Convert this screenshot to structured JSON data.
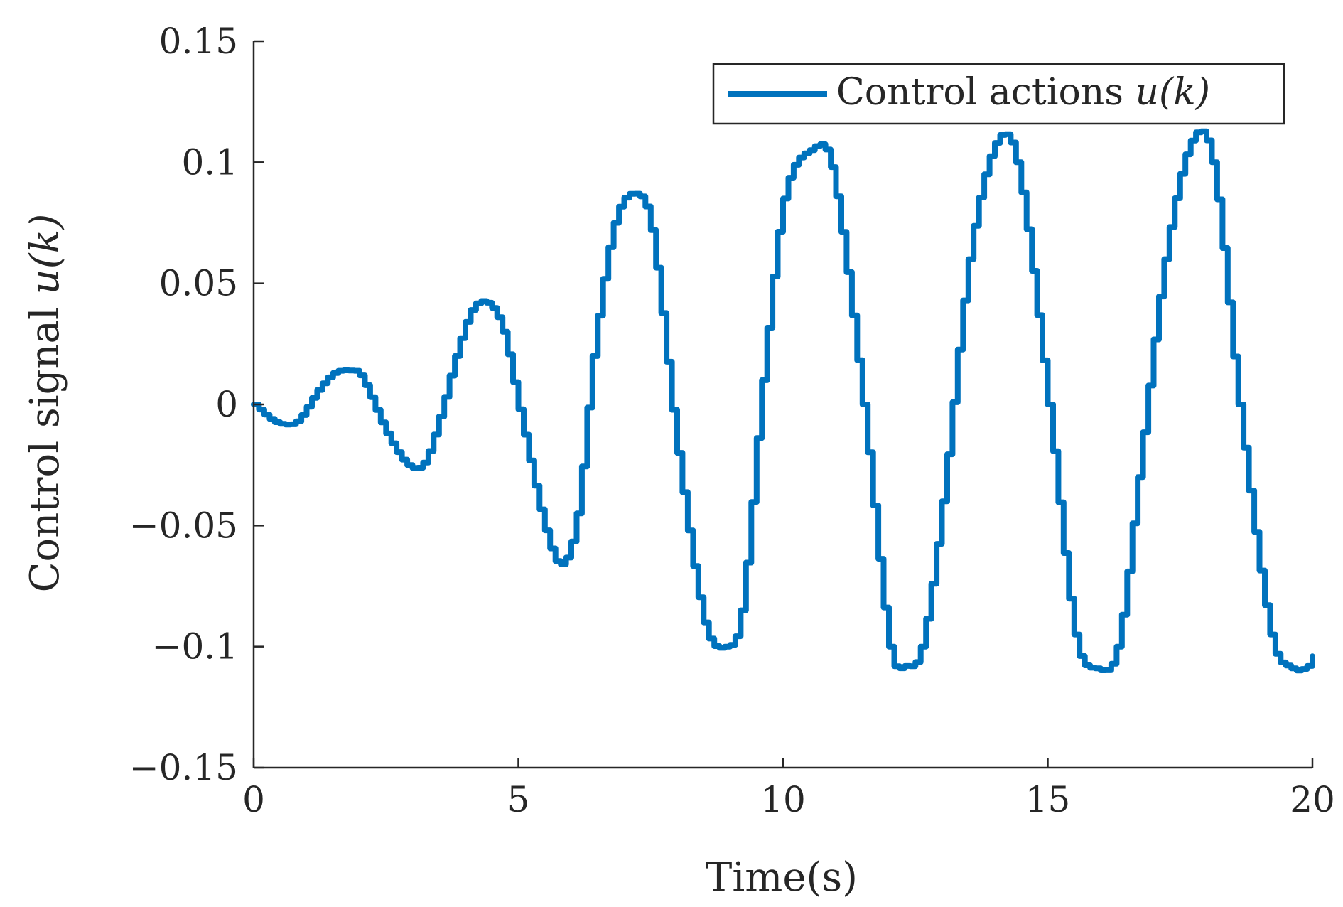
{
  "chart_data": {
    "type": "line",
    "xlabel": "Time(s)",
    "ylabel": {
      "text": "Control signal ",
      "math": "u(k)"
    },
    "xlim": [
      0,
      20
    ],
    "ylim": [
      -0.15,
      0.15
    ],
    "xticks": [
      0,
      5,
      10,
      15,
      20
    ],
    "xtick_labels": [
      "0",
      "5",
      "10",
      "15",
      "20"
    ],
    "yticks": [
      -0.15,
      -0.1,
      -0.05,
      0,
      0.05,
      0.1,
      0.15
    ],
    "ytick_labels": [
      "−0.15",
      "−0.1",
      "−0.05",
      "0",
      "0.05",
      "0.1",
      "0.15"
    ],
    "grid": false,
    "legend": {
      "position": "top-right",
      "entries": [
        {
          "text": "Control actions ",
          "math": "u(k)"
        }
      ]
    },
    "series": [
      {
        "name": "Control actions u(k)",
        "color": "#0072BD",
        "step": true,
        "x": [
          0,
          0.3,
          0.5,
          0.8,
          1.2,
          1.5,
          1.75,
          2.0,
          2.5,
          2.9,
          3.2,
          3.5,
          3.8,
          4.1,
          4.4,
          4.7,
          5.0,
          5.5,
          5.8,
          6.1,
          6.4,
          6.8,
          7.2,
          7.5,
          8.0,
          8.5,
          8.9,
          9.2,
          9.6,
          10.0,
          10.5,
          10.9,
          11.5,
          12.0,
          12.3,
          12.6,
          13.0,
          13.5,
          14.0,
          14.4,
          15.0,
          15.5,
          15.9,
          16.3,
          16.7,
          17.2,
          17.7,
          18.1,
          18.6,
          19.2,
          19.6,
          19.9,
          20.0
        ],
        "y": [
          0,
          -0.006,
          -0.008,
          -0.007,
          0.006,
          0.013,
          0.014,
          0.012,
          -0.012,
          -0.025,
          -0.024,
          -0.005,
          0.02,
          0.039,
          0.042,
          0.03,
          -0.002,
          -0.052,
          -0.066,
          -0.045,
          0.02,
          0.075,
          0.087,
          0.072,
          -0.02,
          -0.09,
          -0.1,
          -0.085,
          0.01,
          0.085,
          0.105,
          0.098,
          0.0,
          -0.1,
          -0.108,
          -0.1,
          -0.04,
          0.06,
          0.108,
          0.1,
          0.0,
          -0.095,
          -0.109,
          -0.1,
          -0.03,
          0.06,
          0.109,
          0.1,
          0.0,
          -0.095,
          -0.109,
          -0.108,
          -0.104
        ]
      }
    ]
  }
}
